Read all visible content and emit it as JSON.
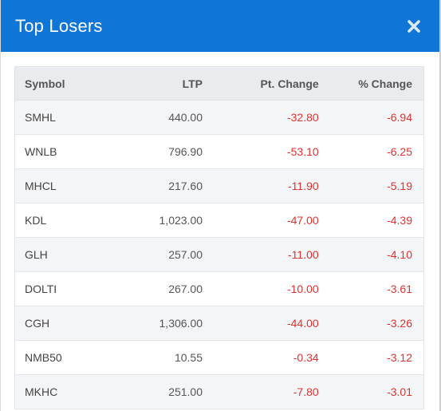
{
  "modal": {
    "title": "Top Losers",
    "close_icon": "close-icon"
  },
  "colors": {
    "header_bg": "#0f75d6",
    "negative": "#e0312f",
    "row_alt": "#f4f5f7",
    "header_row": "#e9ebee"
  },
  "table": {
    "headers": {
      "symbol": "Symbol",
      "ltp": "LTP",
      "pt_change": "Pt. Change",
      "pct_change": "% Change"
    },
    "rows": [
      {
        "symbol": "SMHL",
        "ltp": "440.00",
        "pt_change": "-32.80",
        "pct_change": "-6.94"
      },
      {
        "symbol": "WNLB",
        "ltp": "796.90",
        "pt_change": "-53.10",
        "pct_change": "-6.25"
      },
      {
        "symbol": "MHCL",
        "ltp": "217.60",
        "pt_change": "-11.90",
        "pct_change": "-5.19"
      },
      {
        "symbol": "KDL",
        "ltp": "1,023.00",
        "pt_change": "-47.00",
        "pct_change": "-4.39"
      },
      {
        "symbol": "GLH",
        "ltp": "257.00",
        "pt_change": "-11.00",
        "pct_change": "-4.10"
      },
      {
        "symbol": "DOLTI",
        "ltp": "267.00",
        "pt_change": "-10.00",
        "pct_change": "-3.61"
      },
      {
        "symbol": "CGH",
        "ltp": "1,306.00",
        "pt_change": "-44.00",
        "pct_change": "-3.26"
      },
      {
        "symbol": "NMB50",
        "ltp": "10.55",
        "pt_change": "-0.34",
        "pct_change": "-3.12"
      },
      {
        "symbol": "MKHC",
        "ltp": "251.00",
        "pt_change": "-7.80",
        "pct_change": "-3.01"
      }
    ]
  }
}
